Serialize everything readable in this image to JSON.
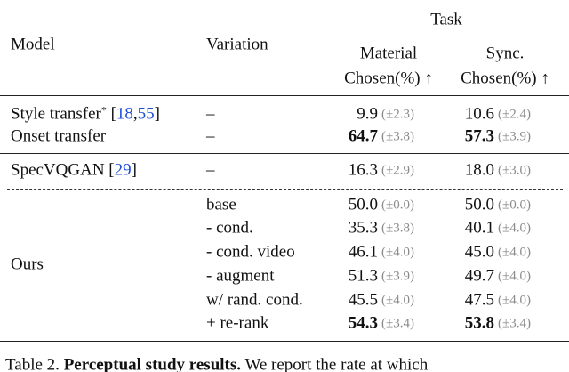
{
  "header": {
    "model": "Model",
    "variation": "Variation",
    "task": "Task",
    "columns": [
      {
        "name": "Material",
        "metric": "Chosen(%) ↑"
      },
      {
        "name": "Sync.",
        "metric": "Chosen(%) ↑"
      }
    ]
  },
  "groups": [
    {
      "rows": [
        {
          "model": [
            {
              "text": "Style transfer"
            },
            {
              "text": "*",
              "sup": true
            },
            {
              "text": " ["
            },
            {
              "text": "18",
              "cite": true
            },
            {
              "text": ","
            },
            {
              "text": "55",
              "cite": true
            },
            {
              "text": "]"
            }
          ],
          "variation": "–",
          "cells": [
            {
              "value": "9.9",
              "ci": "(±2.3)",
              "bold": false
            },
            {
              "value": "10.6",
              "ci": "(±2.4)",
              "bold": false
            }
          ]
        },
        {
          "model": [
            {
              "text": "Onset transfer"
            }
          ],
          "variation": "–",
          "cells": [
            {
              "value": "64.7",
              "ci": "(±3.8)",
              "bold": true
            },
            {
              "value": "57.3",
              "ci": "(±3.9)",
              "bold": true
            }
          ]
        }
      ]
    },
    {
      "rows": [
        {
          "model": [
            {
              "text": "SpecVQGAN ["
            },
            {
              "text": "29",
              "cite": true
            },
            {
              "text": "]"
            }
          ],
          "variation": "–",
          "cells": [
            {
              "value": "16.3",
              "ci": "(±2.9)",
              "bold": false
            },
            {
              "value": "18.0",
              "ci": "(±3.0)",
              "bold": false
            }
          ]
        }
      ]
    },
    {
      "model": "Ours",
      "rows": [
        {
          "variation": "base",
          "cells": [
            {
              "value": "50.0",
              "ci": "(±0.0)",
              "bold": false
            },
            {
              "value": "50.0",
              "ci": "(±0.0)",
              "bold": false
            }
          ]
        },
        {
          "variation": "- cond.",
          "cells": [
            {
              "value": "35.3",
              "ci": "(±3.8)",
              "bold": false
            },
            {
              "value": "40.1",
              "ci": "(±4.0)",
              "bold": false
            }
          ]
        },
        {
          "variation": "- cond. video",
          "cells": [
            {
              "value": "46.1",
              "ci": "(±4.0)",
              "bold": false
            },
            {
              "value": "45.0",
              "ci": "(±4.0)",
              "bold": false
            }
          ]
        },
        {
          "variation": "- augment",
          "cells": [
            {
              "value": "51.3",
              "ci": "(±3.9)",
              "bold": false
            },
            {
              "value": "49.7",
              "ci": "(±4.0)",
              "bold": false
            }
          ]
        },
        {
          "variation": "w/ rand. cond.",
          "cells": [
            {
              "value": "45.5",
              "ci": "(±4.0)",
              "bold": false
            },
            {
              "value": "47.5",
              "ci": "(±4.0)",
              "bold": false
            }
          ]
        },
        {
          "variation": "+ re-rank",
          "cells": [
            {
              "value": "54.3",
              "ci": "(±3.4)",
              "bold": true
            },
            {
              "value": "53.8",
              "ci": "(±3.4)",
              "bold": true
            }
          ]
        }
      ]
    }
  ],
  "caption": {
    "label": "Table 2.",
    "title": "Perceptual study results.",
    "text": "We report the rate at which"
  }
}
